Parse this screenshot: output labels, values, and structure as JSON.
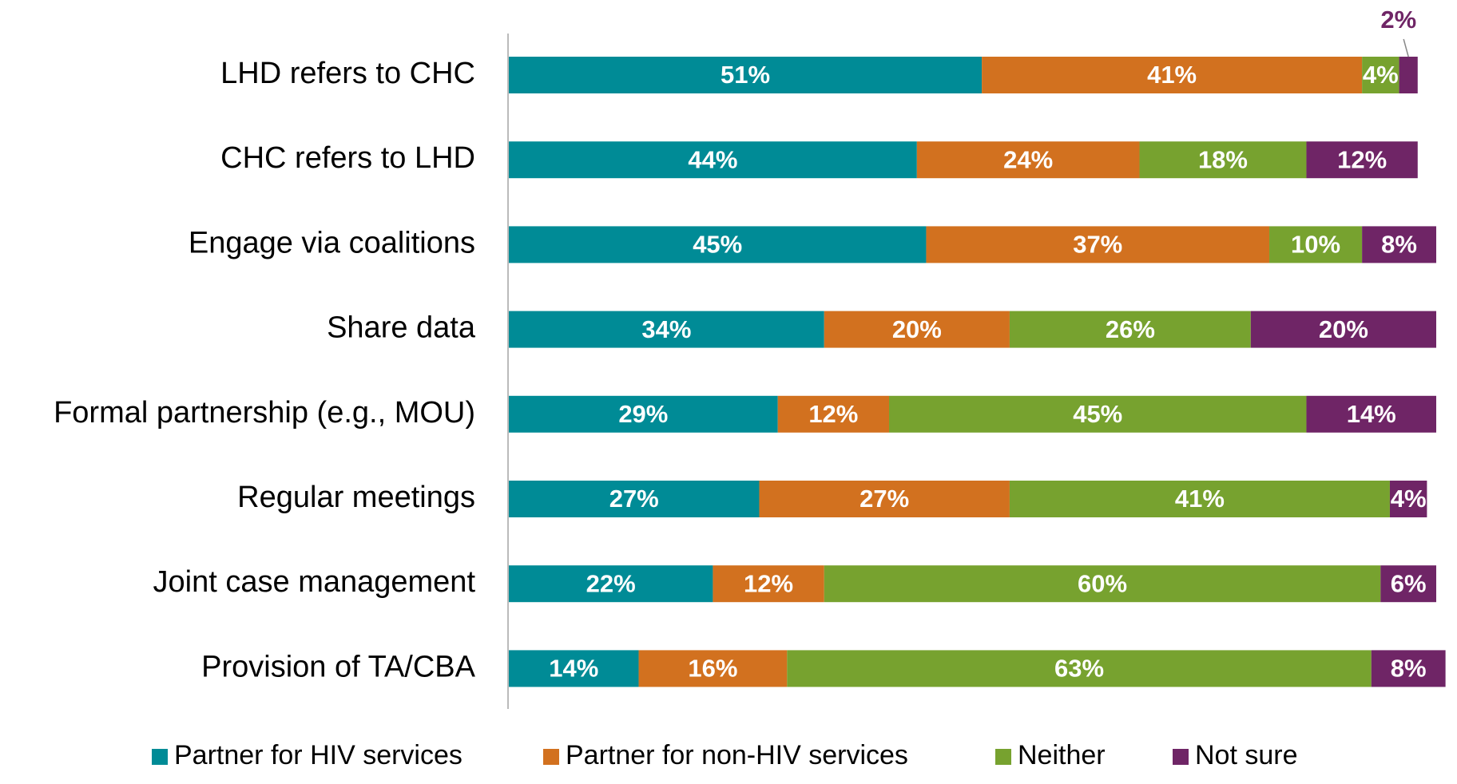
{
  "chart_data": {
    "type": "stacked-bar-horizontal",
    "categories": [
      "LHD refers to CHC",
      "CHC refers to LHD",
      "Engage via coalitions",
      "Share data",
      "Formal partnership (e.g., MOU)",
      "Regular meetings",
      "Joint case management",
      "Provision of TA/CBA"
    ],
    "xlim": [
      0,
      100
    ],
    "legend": "bottom",
    "series": [
      {
        "name": "Partner for HIV services",
        "color": "#008b96",
        "values": [
          51,
          44,
          45,
          34,
          29,
          27,
          22,
          14
        ],
        "value_labels": [
          "51%",
          "44%",
          "45%",
          "34%",
          "29%",
          "27%",
          "22%",
          "14%"
        ]
      },
      {
        "name": "Partner for non-HIV services",
        "color": "#d2711f",
        "values": [
          41,
          24,
          37,
          20,
          12,
          27,
          12,
          16
        ],
        "value_labels": [
          "41%",
          "24%",
          "37%",
          "20%",
          "12%",
          "27%",
          "12%",
          "16%"
        ]
      },
      {
        "name": "Neither",
        "color": "#77a22f",
        "values": [
          4,
          18,
          10,
          26,
          45,
          41,
          60,
          63
        ],
        "value_labels": [
          "4%",
          "18%",
          "10%",
          "26%",
          "45%",
          "41%",
          "60%",
          "63%"
        ]
      },
      {
        "name": "Not sure",
        "color": "#6f2566",
        "values": [
          2,
          12,
          8,
          20,
          14,
          4,
          6,
          8
        ],
        "value_labels": [
          "2%",
          "12%",
          "8%",
          "20%",
          "14%",
          "4%",
          "6%",
          "8%"
        ]
      }
    ]
  }
}
